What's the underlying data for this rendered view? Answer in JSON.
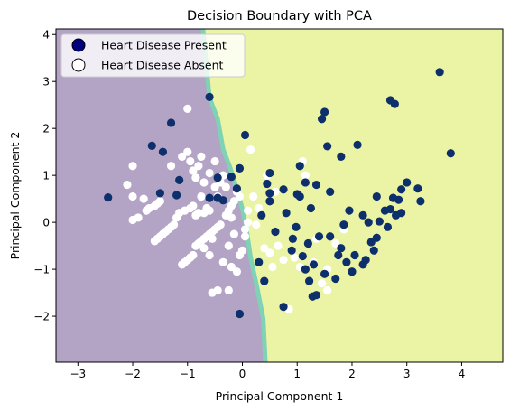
{
  "chart_data": {
    "type": "scatter",
    "title": "Decision Boundary with PCA",
    "xlabel": "Principal Component 1",
    "ylabel": "Principal Component 2",
    "xlim": [
      -3.4,
      4.75
    ],
    "ylim": [
      -2.98,
      4.12
    ],
    "xticks": [
      -3,
      -2,
      -1,
      0,
      1,
      2,
      3,
      4
    ],
    "yticks": [
      -2,
      -1,
      0,
      1,
      2,
      3,
      4
    ],
    "grid": false,
    "legend_placement": "top-left",
    "colors": {
      "region_absent": "#b3a3c5",
      "region_present": "#ebf3a4",
      "boundary_band": "#7fd2b5",
      "present_point": "#0d2f6b",
      "absent_point": "#ffffff",
      "legend_present_marker": "#00007f"
    },
    "decision_boundary": {
      "left_class": "Heart Disease Absent",
      "right_class": "Heart Disease Present",
      "points": [
        [
          -0.72,
          4.12
        ],
        [
          -0.6,
          2.65
        ],
        [
          -0.45,
          2.2
        ],
        [
          -0.35,
          1.55
        ],
        [
          -0.22,
          1.15
        ],
        [
          -0.1,
          0.7
        ],
        [
          0.02,
          0.2
        ],
        [
          0.08,
          -0.2
        ],
        [
          0.15,
          -0.75
        ],
        [
          0.27,
          -1.4
        ],
        [
          0.38,
          -2.05
        ],
        [
          0.42,
          -2.98
        ]
      ]
    },
    "series": [
      {
        "name": "Heart Disease Present",
        "points": [
          [
            -2.45,
            0.53
          ],
          [
            -1.65,
            1.63
          ],
          [
            -1.3,
            2.12
          ],
          [
            -1.45,
            1.5
          ],
          [
            -1.15,
            0.9
          ],
          [
            -1.2,
            0.58
          ],
          [
            -1.5,
            0.62
          ],
          [
            -0.6,
            2.67
          ],
          [
            -0.6,
            0.52
          ],
          [
            -0.45,
            0.95
          ],
          [
            -0.45,
            0.52
          ],
          [
            -0.35,
            0.47
          ],
          [
            -0.2,
            0.97
          ],
          [
            -0.1,
            0.72
          ],
          [
            -0.05,
            1.15
          ],
          [
            0.05,
            1.86
          ],
          [
            0.35,
            0.15
          ],
          [
            0.45,
            0.82
          ],
          [
            0.5,
            0.62
          ],
          [
            0.5,
            1.05
          ],
          [
            0.5,
            0.45
          ],
          [
            0.3,
            -0.85
          ],
          [
            0.4,
            -1.25
          ],
          [
            0.6,
            -0.2
          ],
          [
            0.75,
            0.7
          ],
          [
            0.8,
            0.2
          ],
          [
            0.9,
            -0.6
          ],
          [
            0.92,
            -0.35
          ],
          [
            0.98,
            -0.1
          ],
          [
            1.0,
            0.6
          ],
          [
            1.05,
            1.2
          ],
          [
            1.15,
            0.85
          ],
          [
            1.25,
            0.3
          ],
          [
            1.1,
            -0.72
          ],
          [
            1.15,
            -1.0
          ],
          [
            1.2,
            -0.45
          ],
          [
            1.22,
            -1.25
          ],
          [
            1.28,
            -1.58
          ],
          [
            1.3,
            -0.9
          ],
          [
            1.35,
            0.8
          ],
          [
            1.4,
            -0.3
          ],
          [
            1.45,
            2.2
          ],
          [
            1.5,
            2.35
          ],
          [
            1.55,
            1.62
          ],
          [
            1.6,
            -0.3
          ],
          [
            1.7,
            -1.2
          ],
          [
            1.75,
            -0.7
          ],
          [
            1.8,
            1.4
          ],
          [
            1.8,
            -0.55
          ],
          [
            1.85,
            -0.05
          ],
          [
            1.9,
            -0.85
          ],
          [
            1.95,
            0.25
          ],
          [
            2.05,
            -0.7
          ],
          [
            2.1,
            1.65
          ],
          [
            2.2,
            -0.9
          ],
          [
            2.3,
            0.0
          ],
          [
            2.35,
            -0.42
          ],
          [
            2.4,
            -0.6
          ],
          [
            2.45,
            -0.33
          ],
          [
            2.5,
            0.02
          ],
          [
            2.6,
            0.25
          ],
          [
            2.65,
            -0.1
          ],
          [
            2.7,
            0.28
          ],
          [
            2.75,
            0.52
          ],
          [
            2.8,
            0.15
          ],
          [
            2.85,
            0.48
          ],
          [
            2.9,
            0.2
          ],
          [
            2.9,
            0.7
          ],
          [
            3.0,
            0.85
          ],
          [
            3.2,
            0.72
          ],
          [
            3.25,
            0.45
          ],
          [
            3.6,
            3.2
          ],
          [
            3.8,
            1.47
          ],
          [
            2.7,
            2.6
          ],
          [
            2.78,
            2.52
          ],
          [
            0.75,
            -1.8
          ],
          [
            -0.05,
            -1.95
          ],
          [
            1.35,
            -1.55
          ],
          [
            1.5,
            -1.1
          ],
          [
            2.0,
            -1.05
          ],
          [
            2.25,
            -0.8
          ],
          [
            1.6,
            0.65
          ],
          [
            2.2,
            0.15
          ],
          [
            2.45,
            0.55
          ],
          [
            1.05,
            0.55
          ]
        ]
      },
      {
        "name": "Heart Disease Absent",
        "points": [
          [
            -2.1,
            0.8
          ],
          [
            -2.0,
            1.2
          ],
          [
            -2.0,
            0.55
          ],
          [
            -2.0,
            0.05
          ],
          [
            -1.9,
            0.1
          ],
          [
            -1.8,
            0.5
          ],
          [
            -1.75,
            0.25
          ],
          [
            -1.7,
            0.3
          ],
          [
            -1.6,
            0.35
          ],
          [
            -1.55,
            0.4
          ],
          [
            -1.5,
            0.45
          ],
          [
            -1.6,
            -0.4
          ],
          [
            -1.55,
            -0.35
          ],
          [
            -1.5,
            -0.3
          ],
          [
            -1.45,
            -0.25
          ],
          [
            -1.4,
            -0.2
          ],
          [
            -1.35,
            -0.15
          ],
          [
            -1.3,
            -0.1
          ],
          [
            -1.25,
            -0.05
          ],
          [
            -1.3,
            1.2
          ],
          [
            -1.1,
            1.4
          ],
          [
            -1.0,
            1.5
          ],
          [
            -0.95,
            1.3
          ],
          [
            -0.9,
            1.1
          ],
          [
            -0.85,
            0.95
          ],
          [
            -0.8,
            1.2
          ],
          [
            -0.75,
            1.4
          ],
          [
            -0.7,
            0.85
          ],
          [
            -0.6,
            1.05
          ],
          [
            -0.5,
            1.3
          ],
          [
            -0.5,
            0.75
          ],
          [
            -0.4,
            0.85
          ],
          [
            -0.35,
            1.0
          ],
          [
            -0.3,
            0.75
          ],
          [
            -0.25,
            0.25
          ],
          [
            -0.2,
            0.1
          ],
          [
            -0.15,
            0.45
          ],
          [
            -0.1,
            0.65
          ],
          [
            -0.05,
            0.55
          ],
          [
            -1.1,
            -0.9
          ],
          [
            -1.05,
            -0.85
          ],
          [
            -1.0,
            -0.8
          ],
          [
            -0.95,
            -0.75
          ],
          [
            -0.9,
            -0.7
          ],
          [
            -0.85,
            -0.5
          ],
          [
            -0.8,
            -0.45
          ],
          [
            -0.75,
            -0.4
          ],
          [
            -0.7,
            -0.35
          ],
          [
            -0.65,
            -0.3
          ],
          [
            -0.6,
            -0.25
          ],
          [
            -0.55,
            -0.2
          ],
          [
            -0.5,
            -0.15
          ],
          [
            -0.45,
            -0.1
          ],
          [
            -0.4,
            -0.05
          ],
          [
            -1.05,
            0.25
          ],
          [
            -0.95,
            0.3
          ],
          [
            -0.9,
            0.35
          ],
          [
            -0.85,
            0.15
          ],
          [
            -0.8,
            0.2
          ],
          [
            -1.0,
            2.42
          ],
          [
            -0.2,
            -0.95
          ],
          [
            -0.1,
            -1.05
          ],
          [
            -0.05,
            -0.7
          ],
          [
            0.0,
            -0.6
          ],
          [
            0.05,
            -0.3
          ],
          [
            0.1,
            0.0
          ],
          [
            0.1,
            0.25
          ],
          [
            0.2,
            0.55
          ],
          [
            0.3,
            0.3
          ],
          [
            0.15,
            1.55
          ],
          [
            0.25,
            -0.05
          ],
          [
            0.4,
            -0.55
          ],
          [
            0.5,
            -0.65
          ],
          [
            0.55,
            -0.95
          ],
          [
            0.65,
            -0.5
          ],
          [
            0.75,
            -0.8
          ],
          [
            0.85,
            -1.85
          ],
          [
            0.95,
            -0.75
          ],
          [
            1.05,
            -0.95
          ],
          [
            1.1,
            1.3
          ],
          [
            1.15,
            1.0
          ],
          [
            1.3,
            -0.85
          ],
          [
            1.35,
            -0.35
          ],
          [
            1.45,
            -1.3
          ],
          [
            1.55,
            -1.0
          ],
          [
            1.55,
            -1.45
          ],
          [
            1.7,
            -0.45
          ],
          [
            1.85,
            -0.15
          ],
          [
            0.45,
            1.0
          ],
          [
            0.6,
            0.65
          ],
          [
            -0.35,
            -0.85
          ],
          [
            -0.25,
            -1.45
          ],
          [
            -0.45,
            -1.45
          ],
          [
            -0.55,
            -1.5
          ],
          [
            -0.25,
            -0.5
          ],
          [
            -0.45,
            0.55
          ],
          [
            -0.6,
            -0.7
          ],
          [
            -0.7,
            -0.55
          ],
          [
            -0.15,
            -0.25
          ],
          [
            0.05,
            -0.15
          ],
          [
            -0.2,
            0.35
          ],
          [
            -0.3,
            0.15
          ],
          [
            -1.2,
            0.1
          ],
          [
            -1.15,
            0.2
          ],
          [
            -0.7,
            0.2
          ],
          [
            -0.6,
            0.25
          ],
          [
            -0.65,
            0.3
          ],
          [
            -0.55,
            -0.35
          ],
          [
            -0.75,
            0.55
          ]
        ]
      }
    ],
    "legend": [
      {
        "label": "Heart Disease Present",
        "marker": "filled-circle"
      },
      {
        "label": "Heart Disease Absent",
        "marker": "hollow-circle"
      }
    ]
  }
}
